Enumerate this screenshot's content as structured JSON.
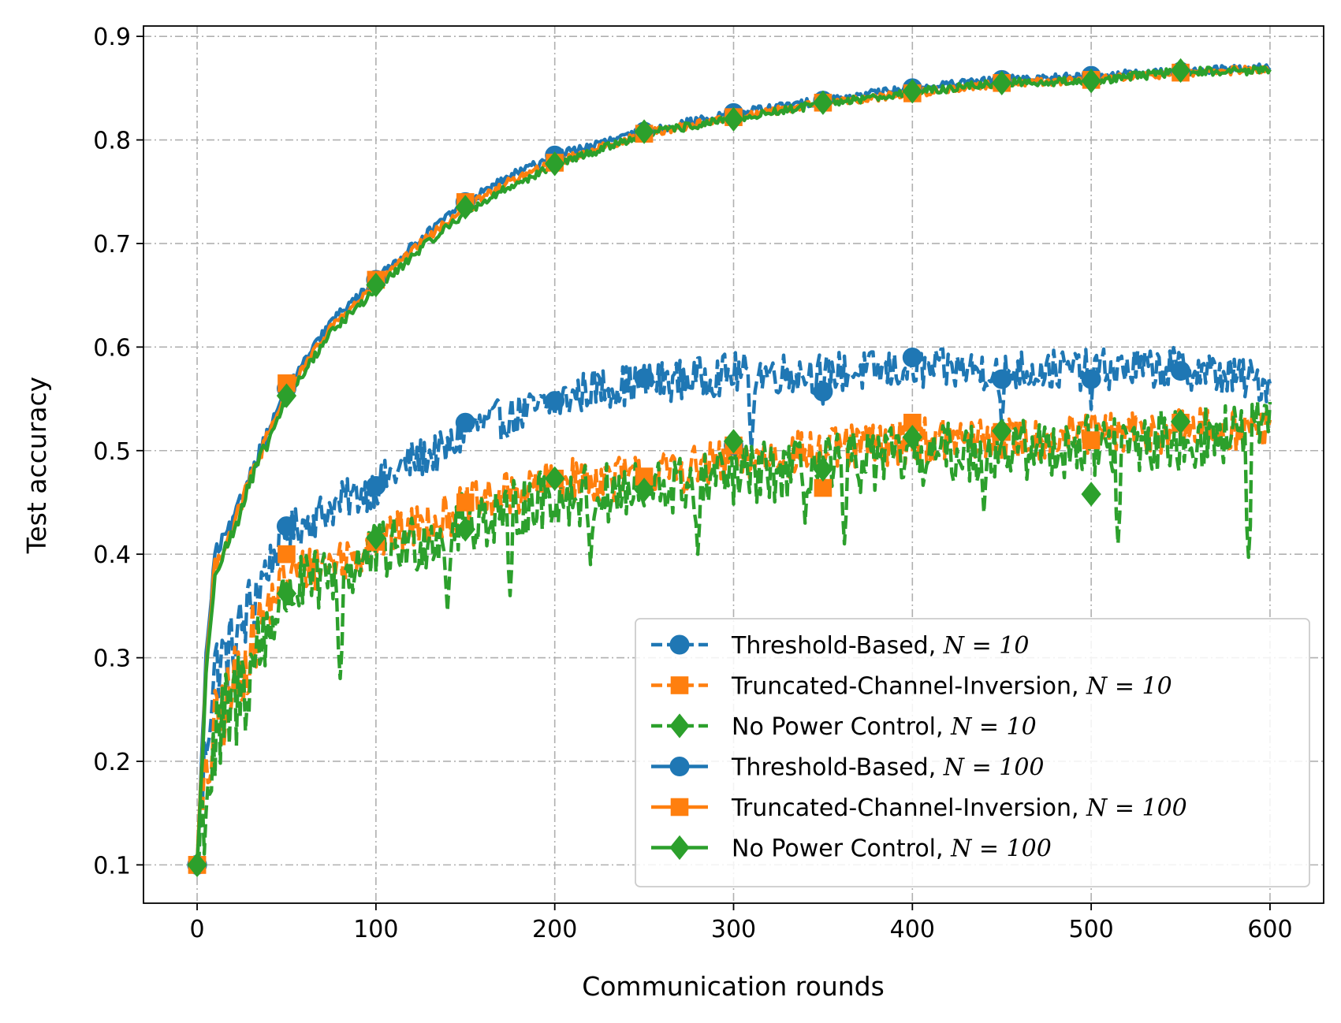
{
  "chart_data": {
    "type": "line",
    "title": "",
    "xlabel": "Communication rounds",
    "ylabel": "Test accuracy",
    "xlim": [
      -30,
      630
    ],
    "ylim": [
      0.063,
      0.91
    ],
    "xticks": [
      0,
      100,
      200,
      300,
      400,
      500,
      600
    ],
    "yticks": [
      0.1,
      0.2,
      0.3,
      0.4,
      0.5,
      0.6,
      0.7,
      0.8,
      0.9
    ],
    "xtick_labels": [
      "0",
      "100",
      "200",
      "300",
      "400",
      "500",
      "600"
    ],
    "ytick_labels": [
      "0.1",
      "0.2",
      "0.3",
      "0.4",
      "0.5",
      "0.6",
      "0.7",
      "0.8",
      "0.9"
    ],
    "grid": true,
    "legend_position": "lower-right",
    "rounds_max": 600,
    "marker_every": 50,
    "series": [
      {
        "name": "Threshold-Based",
        "n_label": "N = 10",
        "color": "#1f77b4",
        "linestyle": "dashed",
        "marker": "circle",
        "marker_x": [
          0,
          50,
          100,
          150,
          200,
          250,
          300,
          350,
          400,
          450,
          500,
          550
        ],
        "marker_y": [
          0.1,
          0.427,
          0.466,
          0.527,
          0.548,
          0.57,
          0.505,
          0.557,
          0.59,
          0.569,
          0.569,
          0.577
        ],
        "curve_x": [
          0,
          5,
          10,
          20,
          30,
          40,
          50,
          60,
          70,
          80,
          100,
          120,
          140,
          150,
          170,
          200,
          220,
          250,
          280,
          300,
          350,
          400,
          450,
          500,
          550,
          600
        ],
        "curve_y": [
          0.1,
          0.22,
          0.29,
          0.31,
          0.35,
          0.39,
          0.42,
          0.43,
          0.44,
          0.45,
          0.465,
          0.49,
          0.5,
          0.52,
          0.53,
          0.545,
          0.56,
          0.565,
          0.57,
          0.575,
          0.575,
          0.578,
          0.578,
          0.578,
          0.58,
          0.565
        ],
        "noise": 0.02,
        "dips": [
          [
            310,
            0.5
          ],
          [
            350,
            0.545
          ],
          [
            450,
            0.52
          ],
          [
            500,
            0.54
          ]
        ]
      },
      {
        "name": "Truncated-Channel-Inversion",
        "n_label": "N = 10",
        "color": "#ff7f0e",
        "linestyle": "dashed",
        "marker": "square",
        "marker_x": [
          0,
          50,
          100,
          150,
          200,
          250,
          300,
          350,
          400,
          450,
          500,
          550
        ],
        "marker_y": [
          0.1,
          0.4,
          0.412,
          0.45,
          0.473,
          0.475,
          0.505,
          0.464,
          0.527,
          0.518,
          0.51,
          0.527
        ],
        "curve_x": [
          0,
          5,
          10,
          20,
          30,
          40,
          50,
          60,
          80,
          100,
          120,
          150,
          180,
          200,
          250,
          300,
          350,
          400,
          450,
          500,
          550,
          600
        ],
        "curve_y": [
          0.1,
          0.18,
          0.23,
          0.27,
          0.31,
          0.35,
          0.38,
          0.385,
          0.395,
          0.41,
          0.425,
          0.445,
          0.46,
          0.47,
          0.475,
          0.49,
          0.5,
          0.51,
          0.51,
          0.515,
          0.52,
          0.52
        ],
        "noise": 0.022,
        "dips": [
          [
            350,
            0.46
          ],
          [
            330,
            0.48
          ]
        ]
      },
      {
        "name": "No Power Control",
        "n_label": "N = 10",
        "color": "#2ca02c",
        "linestyle": "dashed",
        "marker": "diamond",
        "marker_x": [
          0,
          50,
          100,
          150,
          200,
          250,
          300,
          350,
          400,
          450,
          500,
          550
        ],
        "marker_y": [
          0.1,
          0.362,
          0.416,
          0.424,
          0.473,
          0.462,
          0.509,
          0.482,
          0.513,
          0.519,
          0.458,
          0.528
        ],
        "curve_x": [
          0,
          5,
          10,
          20,
          30,
          40,
          50,
          60,
          80,
          100,
          120,
          150,
          180,
          200,
          250,
          300,
          350,
          400,
          450,
          500,
          550,
          600
        ],
        "curve_y": [
          0.1,
          0.17,
          0.21,
          0.25,
          0.29,
          0.33,
          0.36,
          0.37,
          0.38,
          0.4,
          0.41,
          0.43,
          0.445,
          0.455,
          0.46,
          0.475,
          0.485,
          0.495,
          0.5,
          0.505,
          0.51,
          0.52
        ],
        "noise": 0.03,
        "dips": [
          [
            80,
            0.28
          ],
          [
            140,
            0.345
          ],
          [
            175,
            0.36
          ],
          [
            220,
            0.39
          ],
          [
            280,
            0.4
          ],
          [
            340,
            0.43
          ],
          [
            362,
            0.41
          ],
          [
            440,
            0.44
          ],
          [
            515,
            0.41
          ],
          [
            588,
            0.397
          ]
        ]
      },
      {
        "name": "Threshold-Based",
        "n_label": "N = 100",
        "color": "#1f77b4",
        "linestyle": "solid",
        "marker": "circle",
        "marker_x": [
          0,
          50,
          100,
          150,
          200,
          250,
          300,
          350,
          400,
          450,
          500,
          550
        ],
        "marker_y": [
          0.1,
          0.56,
          0.665,
          0.74,
          0.785,
          0.808,
          0.826,
          0.838,
          0.85,
          0.858,
          0.862,
          0.866
        ],
        "curve_x": [
          0,
          5,
          10,
          20,
          30,
          40,
          50,
          75,
          100,
          125,
          150,
          175,
          200,
          250,
          300,
          350,
          400,
          450,
          500,
          550,
          600
        ],
        "curve_y": [
          0.1,
          0.3,
          0.4,
          0.43,
          0.48,
          0.52,
          0.56,
          0.625,
          0.665,
          0.705,
          0.74,
          0.765,
          0.785,
          0.808,
          0.826,
          0.838,
          0.85,
          0.858,
          0.862,
          0.866,
          0.87
        ],
        "noise": 0.004,
        "dips": []
      },
      {
        "name": "Truncated-Channel-Inversion",
        "n_label": "N = 100",
        "color": "#ff7f0e",
        "linestyle": "solid",
        "marker": "square",
        "marker_x": [
          0,
          50,
          100,
          150,
          200,
          250,
          300,
          350,
          400,
          450,
          500,
          550
        ],
        "marker_y": [
          0.1,
          0.565,
          0.665,
          0.74,
          0.778,
          0.806,
          0.822,
          0.836,
          0.845,
          0.855,
          0.858,
          0.865
        ],
        "curve_x": [
          0,
          5,
          10,
          20,
          30,
          40,
          50,
          75,
          100,
          125,
          150,
          175,
          200,
          250,
          300,
          350,
          400,
          450,
          500,
          550,
          600
        ],
        "curve_y": [
          0.1,
          0.29,
          0.39,
          0.425,
          0.475,
          0.515,
          0.555,
          0.62,
          0.66,
          0.7,
          0.735,
          0.76,
          0.778,
          0.806,
          0.822,
          0.836,
          0.845,
          0.855,
          0.858,
          0.865,
          0.868
        ],
        "noise": 0.004,
        "dips": []
      },
      {
        "name": "No Power Control",
        "n_label": "N = 100",
        "color": "#2ca02c",
        "linestyle": "solid",
        "marker": "diamond",
        "marker_x": [
          0,
          50,
          100,
          150,
          200,
          250,
          300,
          350,
          400,
          450,
          500,
          550
        ],
        "marker_y": [
          0.1,
          0.553,
          0.66,
          0.735,
          0.777,
          0.808,
          0.82,
          0.836,
          0.847,
          0.855,
          0.857,
          0.867
        ],
        "curve_x": [
          0,
          5,
          10,
          20,
          30,
          40,
          50,
          75,
          100,
          125,
          150,
          175,
          200,
          250,
          300,
          350,
          400,
          450,
          500,
          550,
          600
        ],
        "curve_y": [
          0.1,
          0.28,
          0.385,
          0.42,
          0.47,
          0.51,
          0.55,
          0.615,
          0.655,
          0.695,
          0.73,
          0.755,
          0.775,
          0.806,
          0.82,
          0.835,
          0.846,
          0.855,
          0.857,
          0.866,
          0.867
        ],
        "noise": 0.004,
        "dips": []
      }
    ]
  }
}
